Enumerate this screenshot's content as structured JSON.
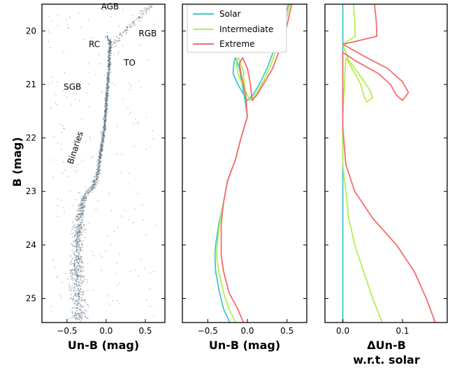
{
  "series_colors": {
    "Solar": "#3cc9c9",
    "Intermediate": "#b3ef4f",
    "Extreme": "#f76b6b"
  },
  "y_axis": {
    "label": "B (mag)",
    "ticks": [
      20,
      21,
      22,
      23,
      24,
      25
    ],
    "ylim": [
      25.45,
      19.5
    ],
    "inverted": true
  },
  "chart_data": [
    {
      "type": "scatter",
      "panel": "cmd",
      "xlabel": "Un-B (mag)",
      "ylabel": "B (mag)",
      "xlim": [
        -0.82,
        0.75
      ],
      "ylim": [
        25.45,
        19.5
      ],
      "xticks": [
        -0.5,
        0.0,
        0.5
      ],
      "xtick_labels": [
        "−0.5",
        "0.0",
        "0.5"
      ],
      "point_color": "#5a6b7c",
      "sequence_ridge": [
        [
          0.0,
          20.1
        ],
        [
          0.05,
          20.2
        ],
        [
          0.04,
          20.6
        ],
        [
          0.02,
          21.0
        ],
        [
          0.0,
          21.4
        ],
        [
          -0.02,
          21.8
        ],
        [
          -0.06,
          22.2
        ],
        [
          -0.1,
          22.6
        ],
        [
          -0.16,
          22.9
        ],
        [
          -0.28,
          23.1
        ],
        [
          -0.34,
          23.5
        ],
        [
          -0.36,
          24.0
        ],
        [
          -0.38,
          24.5
        ],
        [
          -0.36,
          25.0
        ],
        [
          -0.34,
          25.4
        ]
      ],
      "annotations": [
        {
          "text": "AGB",
          "x": 0.05,
          "y": 19.6
        },
        {
          "text": "RGB",
          "x": 0.53,
          "y": 20.1
        },
        {
          "text": "RC",
          "x": -0.15,
          "y": 20.3
        },
        {
          "text": "TO",
          "x": 0.3,
          "y": 20.65
        },
        {
          "text": "SGB",
          "x": -0.43,
          "y": 21.1
        },
        {
          "text": "Binaries",
          "x": -0.36,
          "y": 22.2,
          "rotation": -72
        }
      ]
    },
    {
      "type": "line",
      "panel": "isochrones",
      "xlabel": "Un-B (mag)",
      "xlim": [
        -0.82,
        0.75
      ],
      "ylim": [
        25.45,
        19.5
      ],
      "xticks": [
        -0.5,
        0.0,
        0.5
      ],
      "xtick_labels": [
        "−0.5",
        "0.0",
        "0.5"
      ],
      "legend": {
        "placement": "top-left",
        "entries": [
          "Solar",
          "Intermediate",
          "Extreme"
        ]
      },
      "series": [
        {
          "name": "Solar",
          "points": [
            [
              0.52,
              19.5
            ],
            [
              0.45,
              19.9
            ],
            [
              0.35,
              20.3
            ],
            [
              0.25,
              20.7
            ],
            [
              0.15,
              21.0
            ],
            [
              0.07,
              21.2
            ],
            [
              0.0,
              21.3
            ],
            [
              -0.04,
              21.2
            ],
            [
              -0.12,
              21.0
            ],
            [
              -0.18,
              20.8
            ],
            [
              -0.17,
              20.6
            ],
            [
              -0.15,
              20.5
            ],
            [
              -0.1,
              20.7
            ],
            [
              -0.04,
              21.2
            ],
            [
              0.0,
              21.6
            ],
            [
              -0.08,
              22.0
            ],
            [
              -0.15,
              22.4
            ],
            [
              -0.25,
              22.8
            ],
            [
              -0.3,
              23.2
            ],
            [
              -0.36,
              23.6
            ],
            [
              -0.4,
              24.0
            ],
            [
              -0.41,
              24.2
            ],
            [
              -0.4,
              24.5
            ],
            [
              -0.35,
              24.9
            ],
            [
              -0.3,
              25.2
            ],
            [
              -0.22,
              25.45
            ]
          ]
        },
        {
          "name": "Intermediate",
          "points": [
            [
              0.54,
              19.5
            ],
            [
              0.47,
              19.9
            ],
            [
              0.38,
              20.3
            ],
            [
              0.28,
              20.7
            ],
            [
              0.18,
              21.0
            ],
            [
              0.1,
              21.2
            ],
            [
              0.03,
              21.3
            ],
            [
              0.0,
              21.2
            ],
            [
              -0.06,
              21.0
            ],
            [
              -0.12,
              20.8
            ],
            [
              -0.14,
              20.6
            ],
            [
              -0.11,
              20.5
            ],
            [
              -0.06,
              20.7
            ],
            [
              -0.02,
              21.2
            ],
            [
              0.0,
              21.6
            ],
            [
              -0.08,
              22.0
            ],
            [
              -0.15,
              22.4
            ],
            [
              -0.25,
              22.8
            ],
            [
              -0.3,
              23.2
            ],
            [
              -0.35,
              23.6
            ],
            [
              -0.38,
              24.0
            ],
            [
              -0.39,
              24.2
            ],
            [
              -0.36,
              24.5
            ],
            [
              -0.3,
              24.9
            ],
            [
              -0.23,
              25.2
            ],
            [
              -0.15,
              25.45
            ]
          ]
        },
        {
          "name": "Extreme",
          "points": [
            [
              0.56,
              19.5
            ],
            [
              0.5,
              19.9
            ],
            [
              0.42,
              20.3
            ],
            [
              0.32,
              20.7
            ],
            [
              0.2,
              21.0
            ],
            [
              0.12,
              21.2
            ],
            [
              0.06,
              21.3
            ],
            [
              0.04,
              21.0
            ],
            [
              0.0,
              20.7
            ],
            [
              -0.06,
              20.5
            ],
            [
              -0.1,
              20.6
            ],
            [
              -0.08,
              20.8
            ],
            [
              -0.02,
              21.2
            ],
            [
              0.0,
              21.6
            ],
            [
              -0.08,
              22.0
            ],
            [
              -0.15,
              22.4
            ],
            [
              -0.25,
              22.8
            ],
            [
              -0.3,
              23.2
            ],
            [
              -0.33,
              23.6
            ],
            [
              -0.33,
              24.0
            ],
            [
              -0.33,
              24.2
            ],
            [
              -0.3,
              24.5
            ],
            [
              -0.23,
              24.9
            ],
            [
              -0.12,
              25.2
            ],
            [
              -0.05,
              25.45
            ]
          ]
        }
      ]
    },
    {
      "type": "line",
      "panel": "delta",
      "xlabel": "ΔUn-B",
      "xlabel_line2": "w.r.t. solar",
      "xlim": [
        -0.03,
        0.175
      ],
      "ylim": [
        25.45,
        19.5
      ],
      "xticks": [
        0.0,
        0.1
      ],
      "xtick_labels": [
        "0.0",
        "0.1"
      ],
      "series": [
        {
          "name": "Solar",
          "points": [
            [
              0.0,
              19.5
            ],
            [
              0.0,
              25.45
            ]
          ]
        },
        {
          "name": "Intermediate",
          "points": [
            [
              0.018,
              19.5
            ],
            [
              0.02,
              19.8
            ],
            [
              0.021,
              20.1
            ],
            [
              0.0,
              20.25
            ],
            [
              0.01,
              20.55
            ],
            [
              0.03,
              20.85
            ],
            [
              0.045,
              21.1
            ],
            [
              0.05,
              21.25
            ],
            [
              0.04,
              21.33
            ],
            [
              0.035,
              21.2
            ],
            [
              0.03,
              21.0
            ],
            [
              0.018,
              20.75
            ],
            [
              0.005,
              20.5
            ],
            [
              0.0,
              21.6
            ],
            [
              0.0,
              22.5
            ],
            [
              0.005,
              23.0
            ],
            [
              0.01,
              23.5
            ],
            [
              0.02,
              24.0
            ],
            [
              0.035,
              24.5
            ],
            [
              0.05,
              25.0
            ],
            [
              0.066,
              25.45
            ]
          ]
        },
        {
          "name": "Extreme",
          "points": [
            [
              0.053,
              19.5
            ],
            [
              0.056,
              19.8
            ],
            [
              0.057,
              20.1
            ],
            [
              0.0,
              20.25
            ],
            [
              0.04,
              20.5
            ],
            [
              0.075,
              20.7
            ],
            [
              0.1,
              20.95
            ],
            [
              0.11,
              21.15
            ],
            [
              0.1,
              21.3
            ],
            [
              0.09,
              21.2
            ],
            [
              0.08,
              21.0
            ],
            [
              0.06,
              20.8
            ],
            [
              0.02,
              20.55
            ],
            [
              0.0,
              20.4
            ],
            [
              0.0,
              21.8
            ],
            [
              0.005,
              22.5
            ],
            [
              0.02,
              23.0
            ],
            [
              0.05,
              23.5
            ],
            [
              0.09,
              24.0
            ],
            [
              0.12,
              24.5
            ],
            [
              0.14,
              25.0
            ],
            [
              0.155,
              25.45
            ]
          ]
        }
      ]
    }
  ]
}
